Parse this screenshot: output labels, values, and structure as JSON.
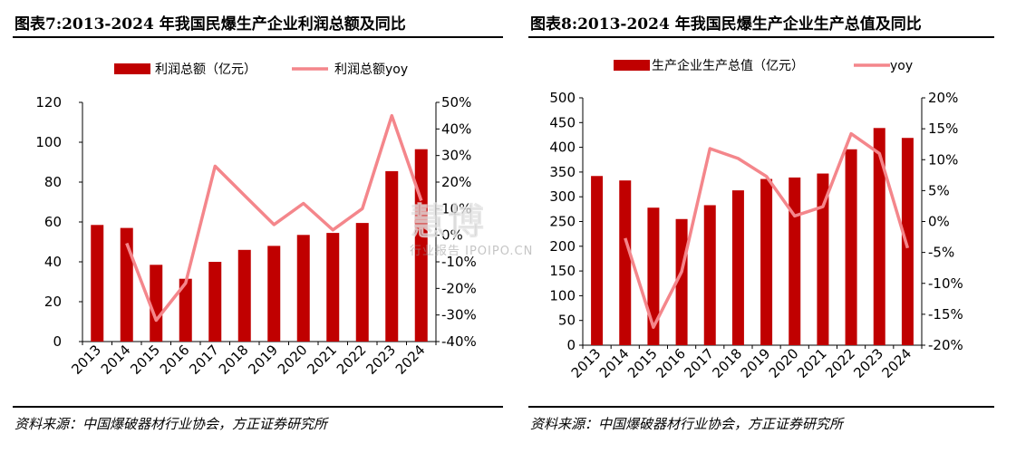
{
  "panels": [
    {
      "title": "图表7:2013-2024 年我国民爆生产企业利润总额及同比",
      "source": "资料来源：中国爆破器材行业协会，方正证券研究所"
    },
    {
      "title": "图表8:2013-2024 年我国民爆生产企业生产总值及同比",
      "source": "资料来源：中国爆破器材行业协会，方正证券研究所"
    }
  ],
  "watermark": {
    "text": "慧博",
    "subtext": "行业报告 IPOIPO.CN"
  },
  "colors": {
    "bar": "#c00000",
    "line": "#f4868b"
  },
  "chart_data": [
    {
      "type": "bar",
      "categories": [
        "2013",
        "2014",
        "2015",
        "2016",
        "2017",
        "2018",
        "2019",
        "2020",
        "2021",
        "2022",
        "2023",
        "2024"
      ],
      "series": [
        {
          "name": "利润总额（亿元）",
          "type": "bar",
          "axis": "left",
          "values": [
            58.5,
            57,
            38.5,
            31.5,
            40,
            46,
            48,
            53.5,
            54.5,
            59.5,
            85.5,
            96.5
          ]
        },
        {
          "name": "利润总额yoy",
          "type": "line",
          "axis": "right",
          "values": [
            null,
            -3,
            -32,
            -18,
            26,
            15,
            4,
            12,
            2,
            10,
            45,
            13
          ]
        }
      ],
      "yleft": {
        "min": 0,
        "max": 120,
        "step": 20,
        "ticks": [
          "0",
          "20",
          "40",
          "60",
          "80",
          "100",
          "120"
        ]
      },
      "yright": {
        "min": -40,
        "max": 50,
        "step": 10,
        "ticks": [
          "-40%",
          "-30%",
          "-20%",
          "-10%",
          "0%",
          "10%",
          "20%",
          "30%",
          "40%",
          "50%"
        ]
      },
      "legend": "top"
    },
    {
      "type": "bar",
      "categories": [
        "2013",
        "2014",
        "2015",
        "2016",
        "2017",
        "2018",
        "2019",
        "2020",
        "2021",
        "2022",
        "2023",
        "2024"
      ],
      "series": [
        {
          "name": "生产企业生产总值（亿元）",
          "type": "bar",
          "axis": "left",
          "values": [
            342,
            333,
            278,
            255,
            283,
            313,
            336,
            339,
            347,
            396,
            439,
            419
          ]
        },
        {
          "name": "yoy",
          "type": "line",
          "axis": "right",
          "values": [
            null,
            -2.7,
            -17.1,
            -8.1,
            11.8,
            10.2,
            7.3,
            0.9,
            2.4,
            14.2,
            11.0,
            -4.3
          ]
        }
      ],
      "yleft": {
        "min": 0,
        "max": 500,
        "step": 50,
        "ticks": [
          "0",
          "50",
          "100",
          "150",
          "200",
          "250",
          "300",
          "350",
          "400",
          "450",
          "500"
        ]
      },
      "yright": {
        "min": -20,
        "max": 20,
        "step": 5,
        "ticks": [
          "-20%",
          "-15%",
          "-10%",
          "-5%",
          "0%",
          "5%",
          "10%",
          "15%",
          "20%"
        ]
      },
      "legend": "top"
    }
  ]
}
